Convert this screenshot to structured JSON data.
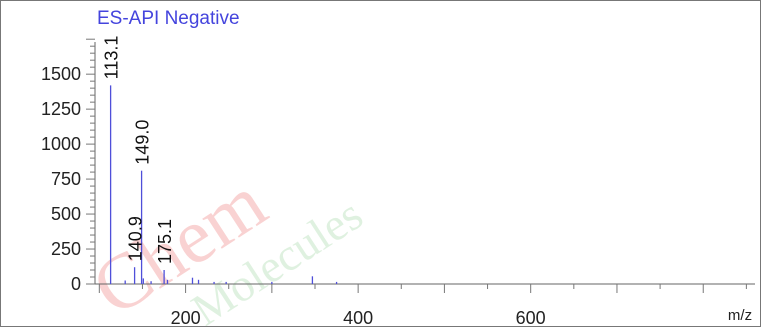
{
  "watermark": {
    "text": "ChemMolecules",
    "primary_color": "#e53935",
    "secondary_color": "#66bb6a"
  },
  "chart_data": {
    "type": "bar",
    "title": "ES-API Negative",
    "xlabel": "m/z",
    "ylabel": "",
    "xlim": [
      95,
      860
    ],
    "ylim": [
      0,
      1780
    ],
    "x_ticks": [
      200,
      400,
      600
    ],
    "y_ticks": [
      0,
      250,
      500,
      750,
      1000,
      1250,
      1500
    ],
    "grid": false,
    "line_color": "#4f4fd9",
    "peaks": [
      {
        "mz": 113.1,
        "intensity": 1420,
        "label": "113.1"
      },
      {
        "mz": 130.0,
        "intensity": 25
      },
      {
        "mz": 140.9,
        "intensity": 120,
        "label": "140.9"
      },
      {
        "mz": 149.0,
        "intensity": 810,
        "label": "149.0"
      },
      {
        "mz": 151.0,
        "intensity": 40
      },
      {
        "mz": 160.0,
        "intensity": 20
      },
      {
        "mz": 175.1,
        "intensity": 100,
        "label": "175.1"
      },
      {
        "mz": 179.0,
        "intensity": 30
      },
      {
        "mz": 208.0,
        "intensity": 45
      },
      {
        "mz": 215.0,
        "intensity": 30
      },
      {
        "mz": 233.0,
        "intensity": 15
      },
      {
        "mz": 247.0,
        "intensity": 15
      },
      {
        "mz": 300.0,
        "intensity": 15
      },
      {
        "mz": 347.0,
        "intensity": 55
      },
      {
        "mz": 375.0,
        "intensity": 15
      }
    ]
  }
}
